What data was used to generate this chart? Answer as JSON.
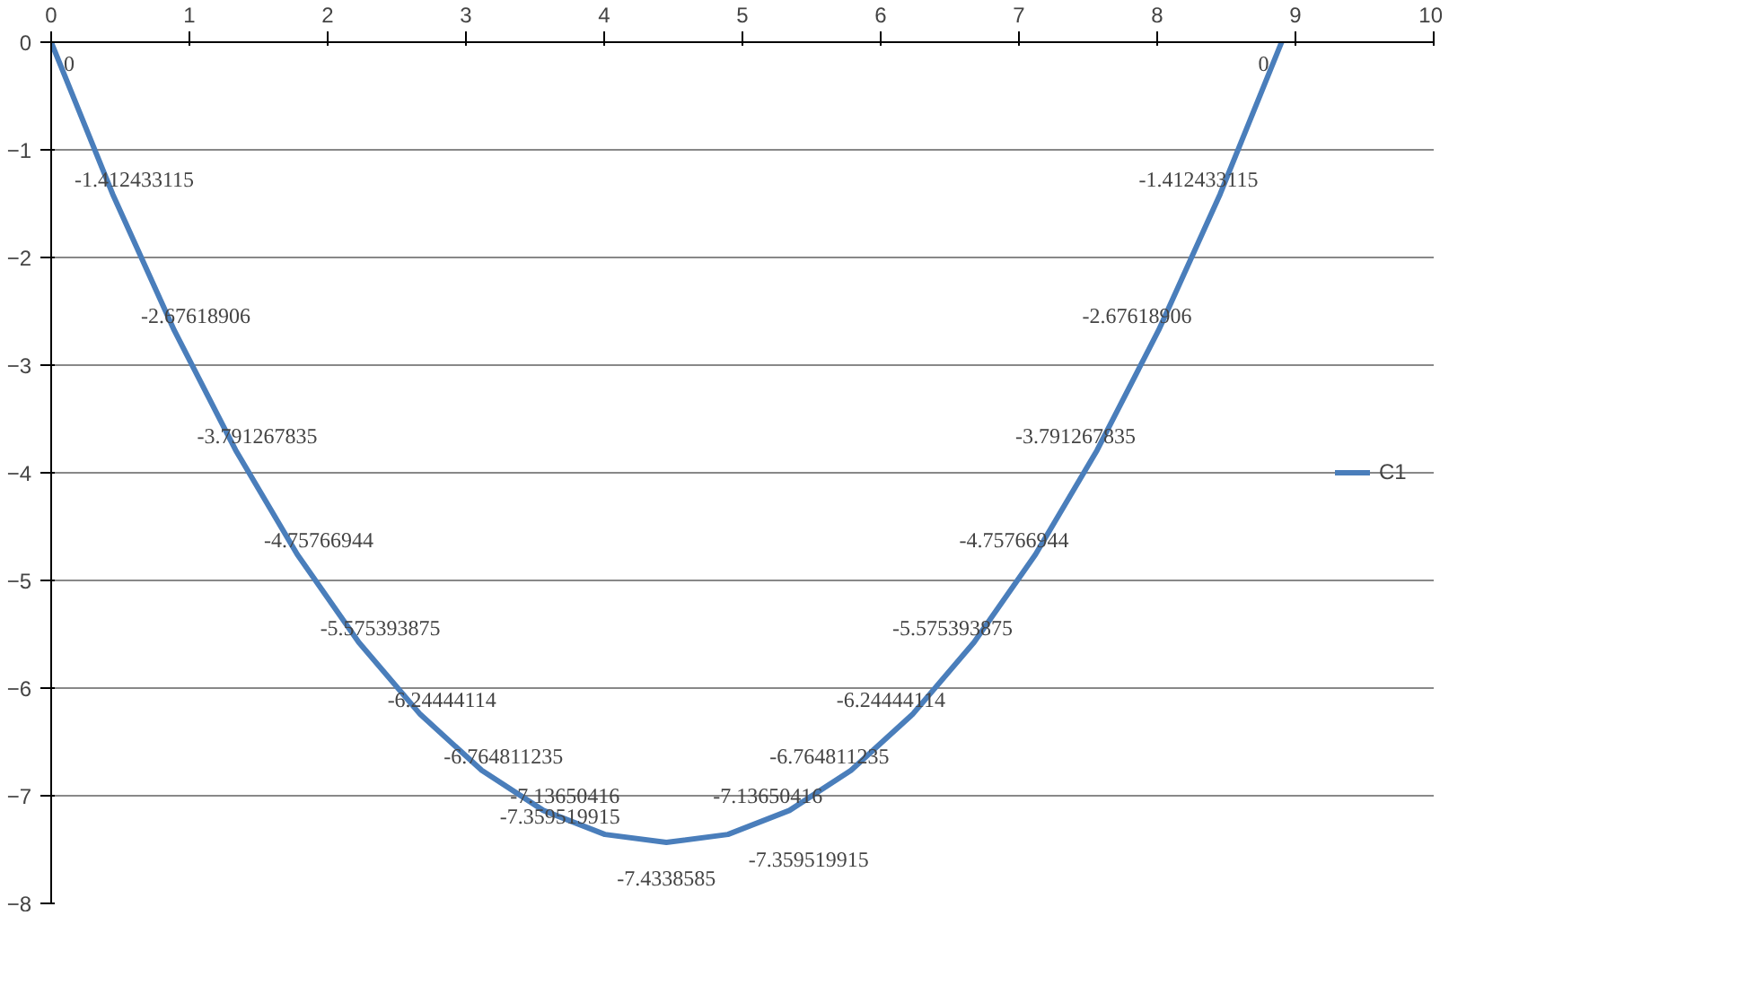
{
  "chart_data": {
    "type": "line",
    "x": [
      0,
      0.445,
      0.89,
      1.335,
      1.78,
      2.225,
      2.67,
      3.115,
      3.56,
      4.005,
      4.45,
      4.895,
      5.34,
      5.785,
      6.23,
      6.675,
      7.12,
      7.565,
      8.01,
      8.455,
      8.9
    ],
    "series": [
      {
        "name": "C1",
        "color": "#4a7ebb",
        "values": [
          0,
          -1.412433115,
          -2.67618906,
          -3.791267835,
          -4.75766944,
          -5.575393875,
          -6.24444114,
          -6.764811235,
          -7.13650416,
          -7.359519915,
          -7.4338585,
          -7.359519915,
          -7.13650416,
          -6.764811235,
          -6.24444114,
          -5.575393875,
          -4.75766944,
          -3.791267835,
          -2.67618906,
          -1.412433115,
          0
        ]
      }
    ],
    "xlim": [
      0,
      10
    ],
    "xticks": [
      0,
      1,
      2,
      3,
      4,
      5,
      6,
      7,
      8,
      9,
      10
    ],
    "ylim": [
      -8,
      0
    ],
    "yticks": [
      0,
      -1,
      -2,
      -3,
      -4,
      -5,
      -6,
      -7,
      -8
    ],
    "grid": "y",
    "legend": "right",
    "marker": "none",
    "line_style": "solid",
    "data_labels": true
  }
}
